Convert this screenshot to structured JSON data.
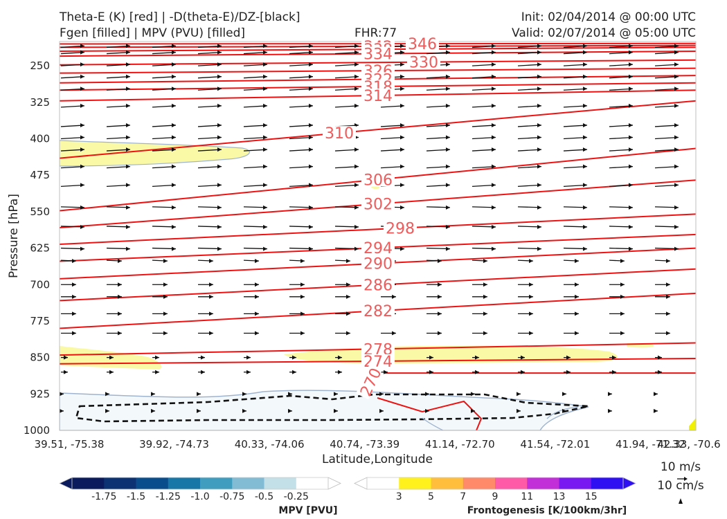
{
  "header": {
    "title_left_1": "Theta-E (K) [red] | -D(theta-E)/DZ-[black]",
    "title_left_2": "Fgen [filled] | MPV (PVU) [filled]",
    "fhr": "FHR:77",
    "init": "Init: 02/04/2014 @ 00:00 UTC",
    "valid": "Valid: 02/07/2014 @ 05:00 UTC"
  },
  "chart_data": {
    "type": "cross-section",
    "xlabel": "Latitude,Longitude",
    "ylabel": "Pressure [hPa]",
    "x_ticks": [
      "39.51, -75.38",
      "39.92, -74.73",
      "40.33, -74.06",
      "40.74, -73.39",
      "41.14, -72.70",
      "41.54, -72.01",
      "41.94, -71.32",
      "42.33, -70.6"
    ],
    "y_ticks": [
      250,
      325,
      400,
      475,
      550,
      625,
      700,
      775,
      850,
      925,
      1000
    ],
    "ylim": [
      1000,
      200
    ],
    "theta_e_contours": [
      {
        "value": 346,
        "label": "346",
        "y_left": 205,
        "y_right": 204
      },
      {
        "value": 342,
        "label": "342",
        "y_left": 212,
        "y_right": 208
      },
      {
        "value": 338,
        "label": "338",
        "y_left": 220,
        "y_right": 212
      },
      {
        "value": 334,
        "label": "334",
        "y_left": 230,
        "y_right": 220
      },
      {
        "value": 330,
        "label": "330",
        "y_left": 248,
        "y_right": 238
      },
      {
        "value": 326,
        "label": "326",
        "y_left": 265,
        "y_right": 255
      },
      {
        "value": 322,
        "label": "322",
        "y_left": 285,
        "y_right": 270
      },
      {
        "value": 318,
        "label": "318",
        "y_left": 300,
        "y_right": 285
      },
      {
        "value": 314,
        "label": "314",
        "y_left": 322,
        "y_right": 300
      },
      {
        "value": 310,
        "label": "310",
        "y_left": 440,
        "y_right": 322
      },
      {
        "value": 306,
        "label": "306",
        "y_left": 548,
        "y_right": 420
      },
      {
        "value": 302,
        "label": "302",
        "y_left": 583,
        "y_right": 485
      },
      {
        "value": 298,
        "label": "298",
        "y_left": 617,
        "y_right": 555
      },
      {
        "value": 294,
        "label": "294",
        "y_left": 652,
        "y_right": 597
      },
      {
        "value": 290,
        "label": "290",
        "y_left": 688,
        "y_right": 625
      },
      {
        "value": 286,
        "label": "286",
        "y_left": 733,
        "y_right": 668
      },
      {
        "value": 282,
        "label": "282",
        "y_left": 790,
        "y_right": 718
      },
      {
        "value": 278,
        "label": "278",
        "y_left": 845,
        "y_right": 820
      },
      {
        "value": 274,
        "label": "274",
        "y_left": 863,
        "y_right": 852
      },
      {
        "value": 270,
        "label": "270",
        "y_left": 882,
        "y_right": 882
      }
    ],
    "mpv_colorbar": {
      "title": "MPV [PVU]",
      "ticks": [
        "-1.75",
        "-1.5",
        "-1.25",
        "-1.0",
        "-0.75",
        "-0.5",
        "-0.25"
      ],
      "colors": [
        "#0a1a5c",
        "#0d3273",
        "#0a4d8c",
        "#1777a6",
        "#3f9ebf",
        "#82bcd4",
        "#c3dfe7",
        "#ffffff"
      ]
    },
    "fgen_colorbar": {
      "title": "Frontogenesis [K/100km/3hr]",
      "ticks": [
        "3",
        "5",
        "7",
        "9",
        "11",
        "13",
        "15"
      ],
      "colors": [
        "#ffffff",
        "#fff21c",
        "#ffbe3c",
        "#ff8a6a",
        "#ff5aa8",
        "#c22ed8",
        "#7a18f2",
        "#2e10f2"
      ]
    },
    "wind_key": {
      "horizontal": "10 m/s",
      "vertical": "10 cm/s"
    }
  }
}
